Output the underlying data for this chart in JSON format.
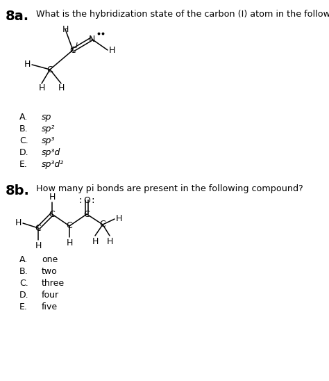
{
  "bg_color": "#ffffff",
  "title_8a": "8a.",
  "question_8a": "What is the hybridization state of the carbon (I) atom in the following compound?",
  "title_8b": "8b.",
  "question_8b": "How many pi bonds are present in the following compound?",
  "answers_8a": [
    "sp",
    "sp²",
    "sp³",
    "sp³d",
    "sp³d²"
  ],
  "answers_8b": [
    "one",
    "two",
    "three",
    "four",
    "five"
  ],
  "letters": [
    "A.",
    "B.",
    "C.",
    "D.",
    "E."
  ],
  "italic_answers_8a": true
}
